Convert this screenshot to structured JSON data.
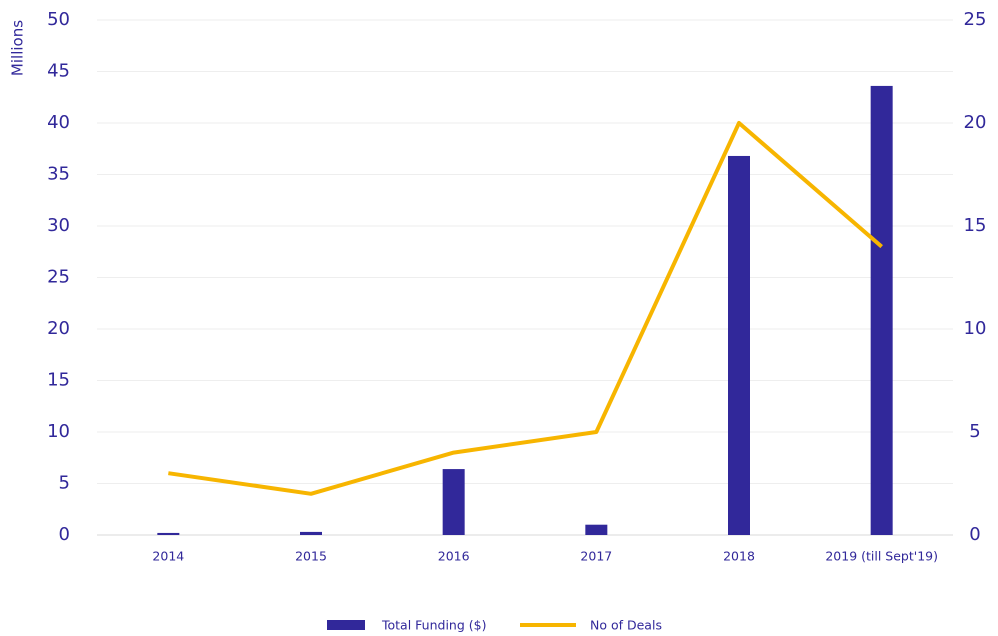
{
  "chart_data": {
    "type": "bar-line",
    "ylabel": "Millions",
    "categories": [
      "2014",
      "2015",
      "2016",
      "2017",
      "2018",
      "2019 (till Sept'19)"
    ],
    "series": [
      {
        "name": "Total Funding ($)",
        "color": "#31289a",
        "type": "bar",
        "values": [
          0.2,
          0.3,
          6.4,
          1.0,
          36.8,
          43.6
        ]
      },
      {
        "name": "No of Deals",
        "color": "#f7b500",
        "type": "line",
        "axis": "y2",
        "values": [
          3,
          2,
          4,
          5,
          20,
          14
        ]
      }
    ],
    "ylim": [
      0,
      50
    ],
    "yticks": [
      0,
      5,
      10,
      15,
      20,
      25,
      30,
      35,
      40,
      45,
      50
    ],
    "y2lim": [
      0,
      25
    ],
    "y2ticks": [
      0,
      5,
      10,
      15,
      20,
      25
    ],
    "grid": true,
    "legend": "bottom"
  }
}
